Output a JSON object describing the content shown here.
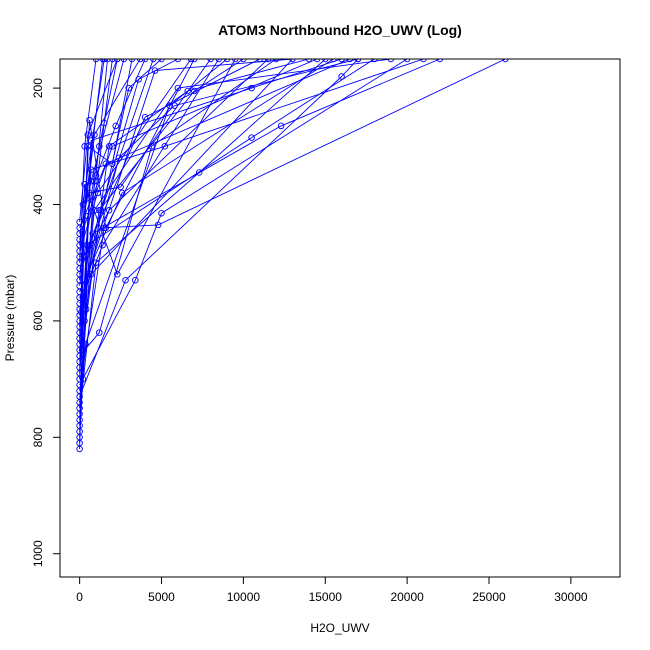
{
  "chart_data": {
    "type": "line",
    "title": "ATOM3 Northbound H2O_UWV (Log)",
    "xlabel": "H2O_UWV",
    "ylabel": "Pressure (mbar)",
    "xlim": [
      -1200,
      33000
    ],
    "ylim": [
      1040,
      150
    ],
    "y_reversed": true,
    "x_ticks": [
      0,
      5000,
      10000,
      15000,
      20000,
      25000,
      30000
    ],
    "y_ticks": [
      200,
      400,
      600,
      800,
      1000
    ],
    "colors": {
      "series": "#0000ff",
      "axis": "#000000",
      "background": "#ffffff"
    },
    "marker": "open-circle",
    "series": [
      {
        "values": [
          [
            0,
            820
          ],
          [
            150,
            650
          ],
          [
            500,
            420
          ],
          [
            1200,
            300
          ],
          [
            2300,
            150
          ]
        ]
      },
      {
        "values": [
          [
            0,
            810
          ],
          [
            300,
            600
          ],
          [
            900,
            360
          ],
          [
            2200,
            265
          ],
          [
            4000,
            150
          ]
        ]
      },
      {
        "values": [
          [
            0,
            800
          ],
          [
            400,
            580
          ],
          [
            1300,
            410
          ],
          [
            3600,
            185
          ],
          [
            6000,
            150
          ]
        ]
      },
      {
        "values": [
          [
            0,
            790
          ],
          [
            200,
            700
          ],
          [
            700,
            290
          ],
          [
            10500,
            200
          ],
          [
            16000,
            150
          ]
        ]
      },
      {
        "values": [
          [
            0,
            780
          ],
          [
            500,
            520
          ],
          [
            4600,
            170
          ],
          [
            13000,
            150
          ]
        ]
      },
      {
        "values": [
          [
            0,
            770
          ],
          [
            350,
            640
          ],
          [
            5500,
            230
          ],
          [
            9000,
            150
          ]
        ]
      },
      {
        "values": [
          [
            0,
            760
          ],
          [
            1000,
            500
          ],
          [
            7300,
            345
          ],
          [
            15000,
            150
          ]
        ]
      },
      {
        "values": [
          [
            0,
            750
          ],
          [
            450,
            470
          ],
          [
            10500,
            285
          ],
          [
            18000,
            150
          ]
        ]
      },
      {
        "values": [
          [
            0,
            740
          ],
          [
            800,
            450
          ],
          [
            12300,
            265
          ],
          [
            22000,
            150
          ]
        ]
      },
      {
        "values": [
          [
            0,
            730
          ],
          [
            2800,
            530
          ],
          [
            16000,
            180
          ],
          [
            17000,
            150
          ]
        ]
      },
      {
        "values": [
          [
            0,
            720
          ],
          [
            1500,
            440
          ],
          [
            4800,
            435
          ],
          [
            26000,
            150
          ]
        ]
      },
      {
        "values": [
          [
            0,
            710
          ],
          [
            3400,
            530
          ],
          [
            5000,
            415
          ],
          [
            20000,
            150
          ]
        ]
      },
      {
        "values": [
          [
            0,
            700
          ],
          [
            600,
            380
          ],
          [
            2500,
            370
          ],
          [
            8000,
            150
          ]
        ]
      },
      {
        "values": [
          [
            0,
            690
          ],
          [
            250,
            490
          ],
          [
            4000,
            250
          ],
          [
            11000,
            150
          ]
        ]
      },
      {
        "values": [
          [
            0,
            680
          ],
          [
            1800,
            300
          ],
          [
            6600,
            205
          ],
          [
            14000,
            150
          ]
        ]
      },
      {
        "values": [
          [
            0,
            670
          ],
          [
            700,
            340
          ],
          [
            5200,
            300
          ],
          [
            21000,
            150
          ]
        ]
      },
      {
        "values": [
          [
            0,
            660
          ],
          [
            1200,
            620
          ],
          [
            4400,
            300
          ],
          [
            12000,
            150
          ]
        ]
      },
      {
        "values": [
          [
            0,
            650
          ],
          [
            900,
            410
          ],
          [
            6000,
            200
          ],
          [
            19000,
            150
          ]
        ]
      },
      {
        "values": [
          [
            0,
            640
          ],
          [
            300,
            365
          ],
          [
            2300,
            520
          ],
          [
            9500,
            150
          ]
        ]
      },
      {
        "values": [
          [
            0,
            630
          ],
          [
            600,
            255
          ],
          [
            1600,
            440
          ],
          [
            7000,
            150
          ]
        ]
      },
      {
        "values": [
          [
            0,
            620
          ],
          [
            200,
            560
          ],
          [
            3000,
            200
          ],
          [
            5000,
            150
          ]
        ]
      },
      {
        "values": [
          [
            0,
            610
          ],
          [
            500,
            300
          ],
          [
            2000,
            330
          ],
          [
            3200,
            150
          ]
        ]
      },
      {
        "values": [
          [
            0,
            600
          ],
          [
            1200,
            410
          ],
          [
            7000,
            205
          ],
          [
            10000,
            150
          ]
        ]
      },
      {
        "values": [
          [
            0,
            590
          ],
          [
            100,
            585
          ],
          [
            1500,
            260
          ],
          [
            2000,
            150
          ]
        ]
      },
      {
        "values": [
          [
            0,
            580
          ],
          [
            2400,
            320
          ],
          [
            5800,
            230
          ],
          [
            17000,
            150
          ]
        ]
      },
      {
        "values": [
          [
            0,
            570
          ],
          [
            1400,
            470
          ],
          [
            8500,
            150
          ]
        ]
      },
      {
        "values": [
          [
            0,
            560
          ],
          [
            700,
            520
          ],
          [
            13000,
            150
          ]
        ]
      },
      {
        "values": [
          [
            0,
            550
          ],
          [
            2600,
            380
          ],
          [
            15500,
            150
          ]
        ]
      },
      {
        "values": [
          [
            0,
            540
          ],
          [
            1000,
            350
          ],
          [
            1700,
            150
          ]
        ]
      },
      {
        "values": [
          [
            0,
            530
          ],
          [
            400,
            390
          ],
          [
            1400,
            150
          ]
        ]
      },
      {
        "values": [
          [
            0,
            520
          ],
          [
            600,
            470
          ],
          [
            4500,
            150
          ]
        ]
      },
      {
        "values": [
          [
            0,
            510
          ],
          [
            1800,
            410
          ],
          [
            11500,
            150
          ]
        ]
      },
      {
        "values": [
          [
            0,
            500
          ],
          [
            300,
            300
          ],
          [
            1000,
            150
          ]
        ]
      },
      {
        "values": [
          [
            0,
            490
          ],
          [
            900,
            280
          ],
          [
            3700,
            150
          ]
        ]
      },
      {
        "values": [
          [
            0,
            480
          ],
          [
            1100,
            380
          ],
          [
            6800,
            150
          ]
        ]
      },
      {
        "values": [
          [
            0,
            470
          ],
          [
            200,
            400
          ],
          [
            1500,
            150
          ]
        ]
      },
      {
        "values": [
          [
            0,
            460
          ],
          [
            2000,
            300
          ],
          [
            14500,
            150
          ]
        ]
      },
      {
        "values": [
          [
            0,
            450
          ],
          [
            700,
            360
          ],
          [
            2700,
            150
          ]
        ]
      },
      {
        "values": [
          [
            0,
            440
          ],
          [
            1600,
            330
          ],
          [
            16500,
            150
          ]
        ]
      },
      {
        "values": [
          [
            0,
            430
          ],
          [
            500,
            280
          ],
          [
            2300,
            150
          ]
        ]
      }
    ]
  }
}
